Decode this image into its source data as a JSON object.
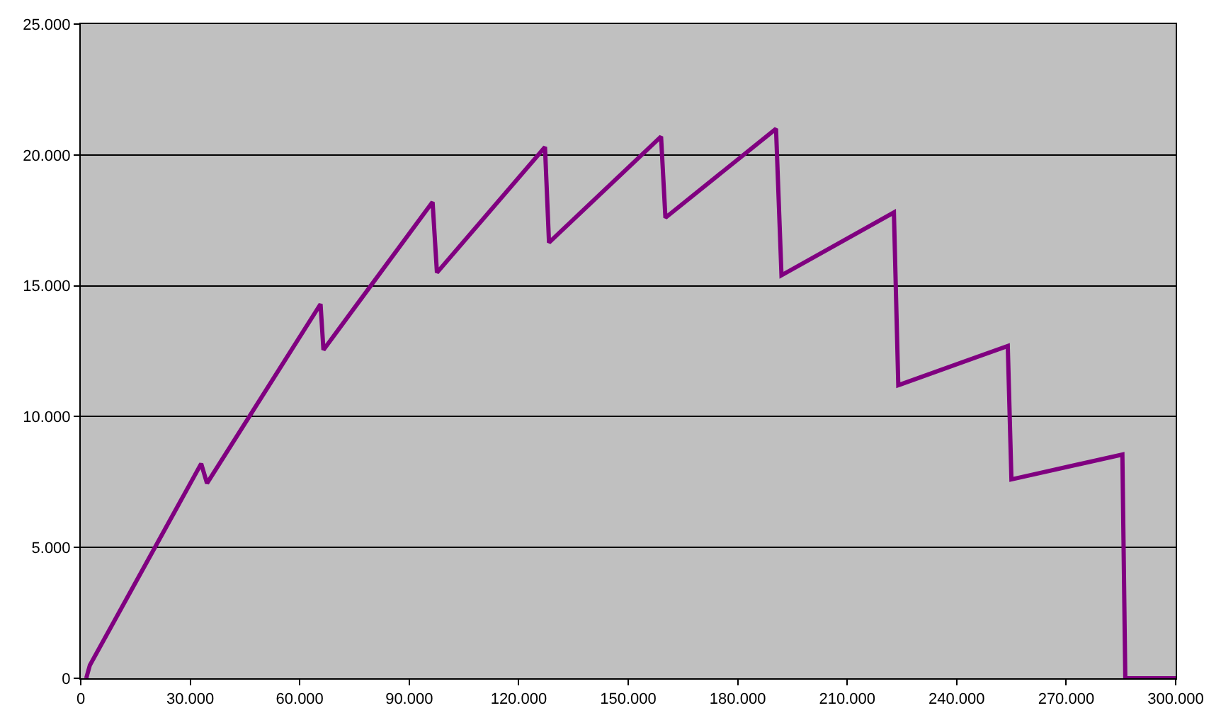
{
  "chart_data": {
    "type": "line",
    "x": [
      1500,
      2500,
      33000,
      34600,
      65700,
      66500,
      96400,
      97600,
      127200,
      128300,
      159000,
      160200,
      190500,
      192000,
      222800,
      224000,
      254000,
      255000,
      285400,
      286200,
      300000
    ],
    "series": [
      {
        "color": "#800080",
        "values": [
          0,
          500,
          8200,
          7450,
          14300,
          12550,
          18200,
          15500,
          20300,
          16650,
          20700,
          17600,
          21000,
          15400,
          17800,
          11200,
          12700,
          7600,
          8550,
          0,
          0
        ]
      }
    ],
    "xlim": [
      0,
      300000
    ],
    "xticks": [
      {
        "value": 0,
        "label": "0"
      },
      {
        "value": 30000,
        "label": "30.000"
      },
      {
        "value": 60000,
        "label": "60.000"
      },
      {
        "value": 90000,
        "label": "90.000"
      },
      {
        "value": 120000,
        "label": "120.000"
      },
      {
        "value": 150000,
        "label": "150.000"
      },
      {
        "value": 180000,
        "label": "180.000"
      },
      {
        "value": 210000,
        "label": "210.000"
      },
      {
        "value": 240000,
        "label": "240.000"
      },
      {
        "value": 270000,
        "label": "270.000"
      },
      {
        "value": 300000,
        "label": "300.000"
      }
    ],
    "ylim": [
      0,
      25000
    ],
    "yticks": [
      {
        "value": 0,
        "label": "0"
      },
      {
        "value": 5000,
        "label": "5.000"
      },
      {
        "value": 10000,
        "label": "10.000"
      },
      {
        "value": 15000,
        "label": "15.000"
      },
      {
        "value": 20000,
        "label": "20.000"
      },
      {
        "value": 25000,
        "label": "25.000"
      }
    ],
    "grid": "y",
    "legend": false,
    "marker": "none",
    "line_style": "solid"
  }
}
